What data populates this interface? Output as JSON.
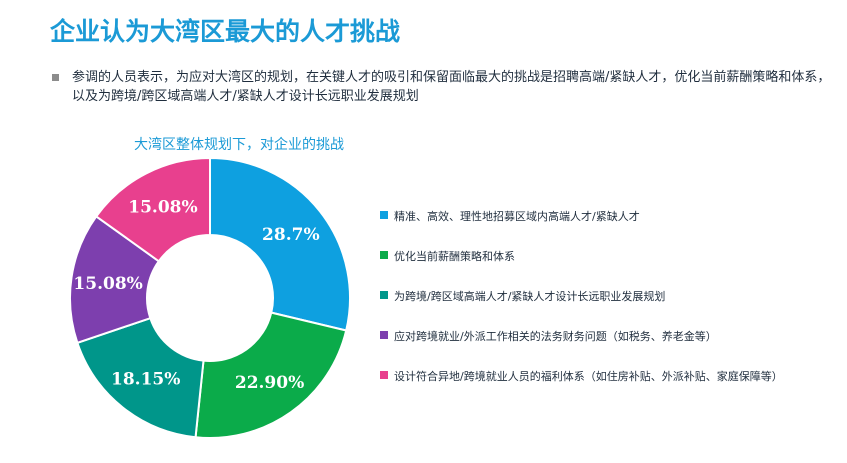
{
  "header": {
    "title": "企业认为大湾区最大的人才挑战",
    "description": "参调的人员表示，为应对大湾区的规划，在关键人才的吸引和保留面临最大的挑战是招聘高端/紧缺人才，优化当前薪酬策略和体系，以及为跨境/跨区域高端人才/紧缺人才设计长远职业发展规划"
  },
  "chart_data": {
    "type": "pie",
    "title": "大湾区整体规划下，对企业的挑战",
    "donut": true,
    "legend_position": "right",
    "series": [
      {
        "name": "精准、高效、理性地招募区域内高端人才/紧缺人才",
        "value": 28.7,
        "label": "28.7%",
        "color": "#0ea0e0"
      },
      {
        "name": "优化当前薪酬策略和体系",
        "value": 22.9,
        "label": "22.90%",
        "color": "#0bab4a"
      },
      {
        "name": "为跨境/跨区域高端人才/紧缺人才设计长远职业发展规划",
        "value": 18.15,
        "label": "18.15%",
        "color": "#00968a"
      },
      {
        "name": "应对跨境就业/外派工作相关的法务财务问题（如税务、养老金等）",
        "value": 15.08,
        "label": "15.08%",
        "color": "#7d3fae"
      },
      {
        "name": "设计符合异地/跨境就业人员的福利体系（如住房补贴、外派补贴、家庭保障等）",
        "value": 15.08,
        "label": "15.08%",
        "color": "#e8408e"
      }
    ]
  }
}
